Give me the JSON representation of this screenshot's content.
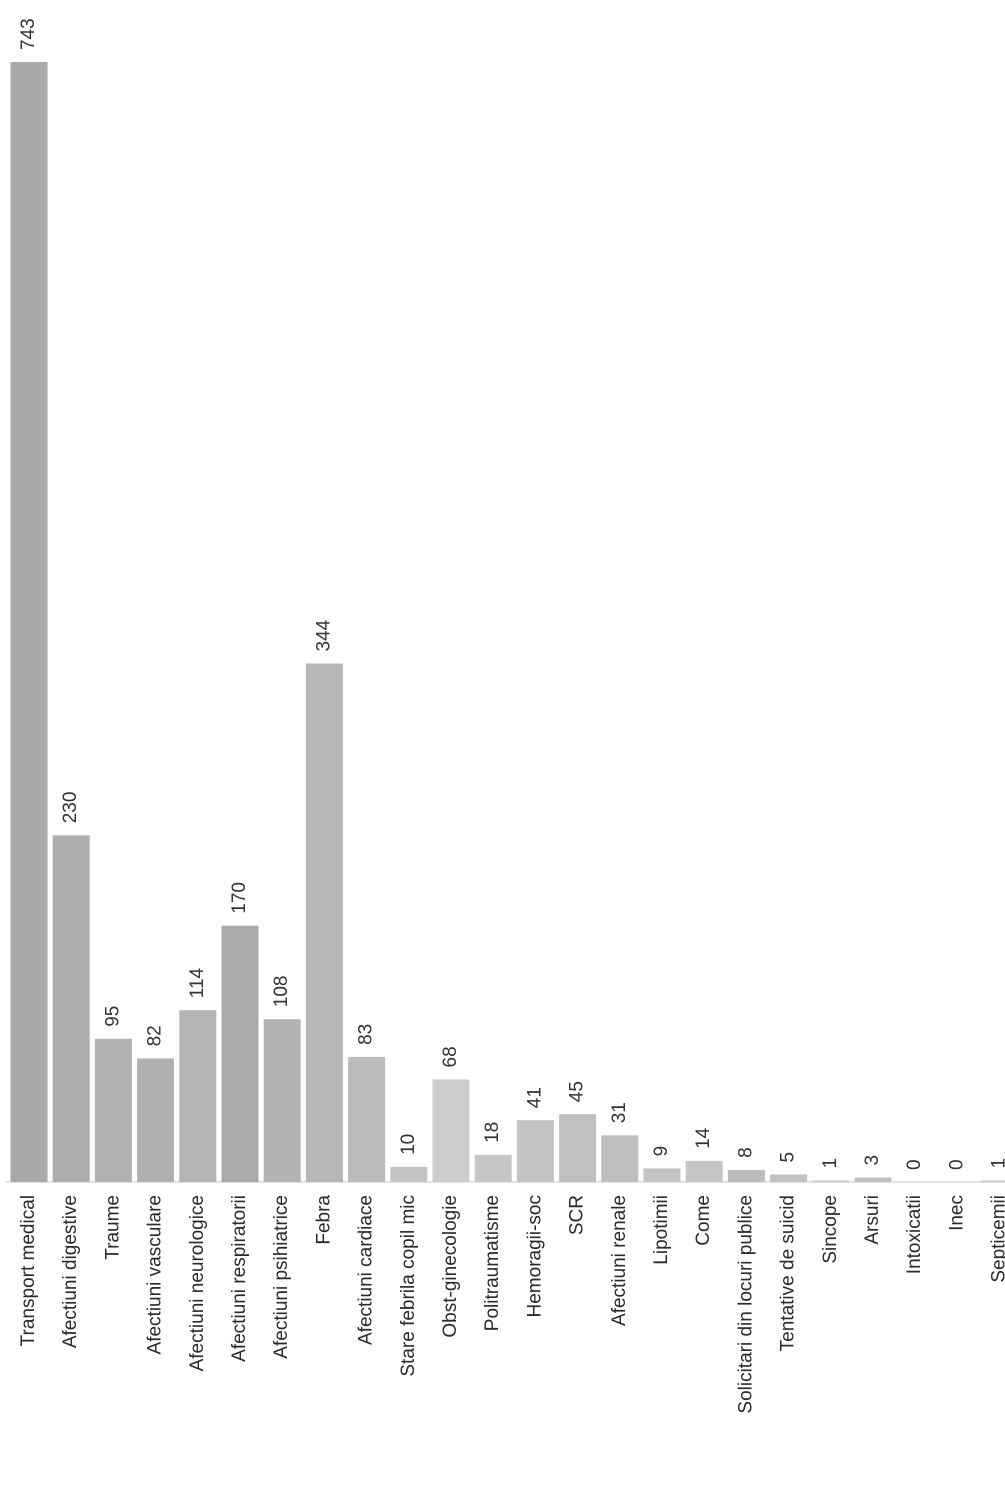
{
  "chart_data": {
    "type": "bar",
    "orientation": "vertical, rotated 90 degrees clockwise",
    "title": "",
    "xlabel": "",
    "ylabel": "",
    "grid": false,
    "legend": "none",
    "ylim": [
      0,
      743
    ],
    "bar_color": "#b3b3b3",
    "categories": [
      "Transport medical",
      "Afectiuni digestive",
      "Traume",
      "Afectiuni vasculare",
      "Afectiuni neurologice",
      "Afectiuni respiratorii",
      "Afectiuni psihiatrice",
      "Febra",
      "Afectiuni cardiace",
      "Stare febrila copil mic",
      "Obst-ginecologie",
      "Politraumatisme",
      "Hemoragii-soc",
      "SCR",
      "Afectiuni renale",
      "Lipotimii",
      "Come",
      "Solicitari din locuri publice",
      "Tentative de suicid",
      "Sincope",
      "Arsuri",
      "Intoxicatii",
      "Inec",
      "Septicemii"
    ],
    "values": [
      743,
      230,
      95,
      82,
      114,
      170,
      108,
      344,
      83,
      10,
      68,
      18,
      41,
      45,
      31,
      9,
      14,
      8,
      5,
      1,
      3,
      0,
      0,
      1
    ],
    "labels": [
      "743",
      "230",
      "95",
      "82",
      "114",
      "170",
      "108",
      "344",
      "83",
      "10",
      "68",
      "18",
      "41",
      "45",
      "31",
      "9",
      "14",
      "8",
      "5",
      "1",
      "3",
      "0",
      "0",
      "1"
    ]
  }
}
